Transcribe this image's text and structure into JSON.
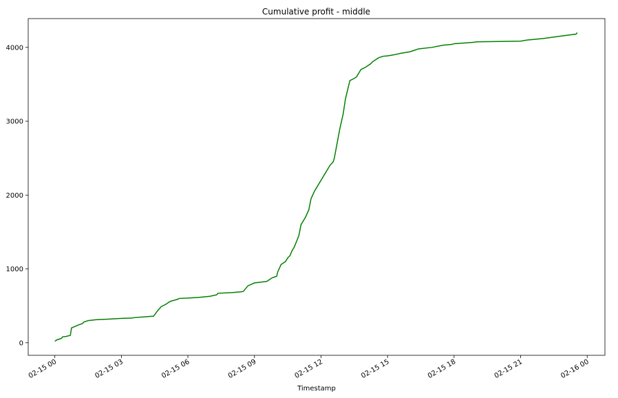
{
  "chart_data": {
    "type": "line",
    "title": "Cumulative profit - middle",
    "xlabel": "Timestamp",
    "ylabel": "",
    "x_ticks": [
      "02-15 00",
      "02-15 03",
      "02-15 06",
      "02-15 09",
      "02-15 12",
      "02-15 15",
      "02-15 18",
      "02-15 21",
      "02-16 00"
    ],
    "y_ticks": [
      0,
      1000,
      2000,
      3000,
      4000
    ],
    "x_range_hours": [
      -1.2,
      24.8
    ],
    "ylim": [
      -170,
      4390
    ],
    "grid": false,
    "legend": "none",
    "series": [
      {
        "color": "#008000",
        "x_hours": [
          0.0,
          0.1,
          0.3,
          0.35,
          0.5,
          0.7,
          0.7,
          0.75,
          0.9,
          1.05,
          1.25,
          1.3,
          1.5,
          1.8,
          2.0,
          2.4,
          3.0,
          3.5,
          3.55,
          4.0,
          4.45,
          4.5,
          4.65,
          4.8,
          5.0,
          5.2,
          5.55,
          5.6,
          6.0,
          6.5,
          7.0,
          7.3,
          7.35,
          8.0,
          8.4,
          8.5,
          8.7,
          9.0,
          9.55,
          9.6,
          9.8,
          10.0,
          10.05,
          10.2,
          10.4,
          10.5,
          10.6,
          10.7,
          10.8,
          11.0,
          11.1,
          11.3,
          11.45,
          11.55,
          11.7,
          11.8,
          12.0,
          12.1,
          12.3,
          12.4,
          12.55,
          12.6,
          12.85,
          13.0,
          13.1,
          13.3,
          13.5,
          13.6,
          13.8,
          14.0,
          14.25,
          14.3,
          14.6,
          14.8,
          15.0,
          15.3,
          15.6,
          16.0,
          16.2,
          16.4,
          17.0,
          17.5,
          17.9,
          18.0,
          18.5,
          18.9,
          19.0,
          20.0,
          21.0,
          21.3,
          22.0,
          23.0,
          23.5,
          23.55
        ],
        "values": [
          20,
          40,
          60,
          80,
          85,
          100,
          100,
          200,
          220,
          240,
          260,
          280,
          300,
          310,
          315,
          320,
          330,
          335,
          340,
          350,
          360,
          380,
          440,
          490,
          520,
          560,
          590,
          600,
          605,
          615,
          630,
          650,
          670,
          680,
          690,
          695,
          770,
          810,
          830,
          840,
          880,
          900,
          960,
          1060,
          1100,
          1150,
          1180,
          1250,
          1300,
          1450,
          1600,
          1700,
          1800,
          1950,
          2050,
          2100,
          2200,
          2250,
          2350,
          2400,
          2450,
          2500,
          2900,
          3100,
          3300,
          3550,
          3580,
          3600,
          3700,
          3730,
          3780,
          3800,
          3860,
          3880,
          3885,
          3900,
          3920,
          3940,
          3960,
          3980,
          4000,
          4030,
          4040,
          4050,
          4060,
          4070,
          4075,
          4080,
          4085,
          4100,
          4120,
          4160,
          4180,
          4200
        ]
      }
    ]
  }
}
